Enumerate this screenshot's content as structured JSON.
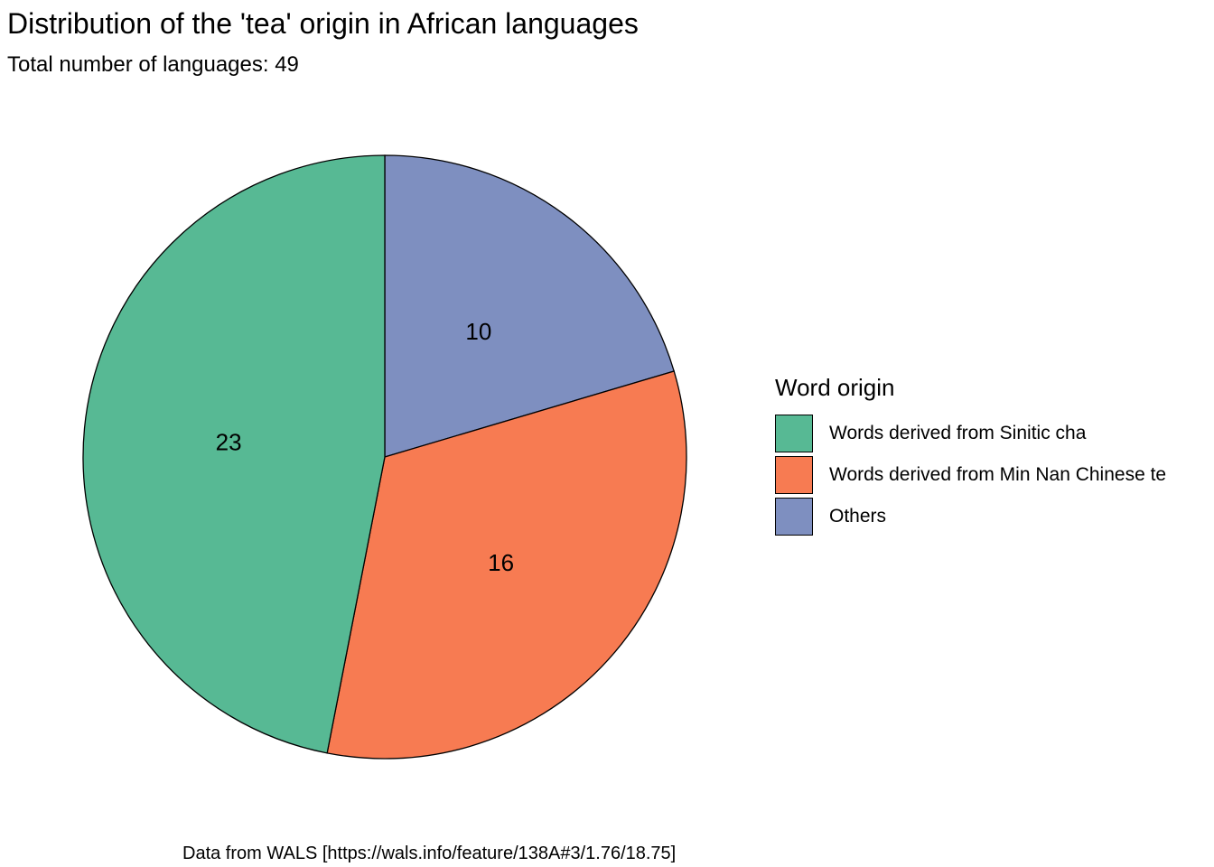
{
  "chart_data": {
    "type": "pie",
    "title": "Distribution of the 'tea' origin in African languages",
    "subtitle": "Total number of languages: 49",
    "caption": "Data from WALS [https://wals.info/feature/138A#3/1.76/18.75]",
    "legend_title": "Word origin",
    "legend_position": "right",
    "slices": [
      {
        "label": "Others",
        "value": 10,
        "color": "#7E8FC0"
      },
      {
        "label": "Words derived from Min Nan Chinese te",
        "value": 16,
        "color": "#F77B52"
      },
      {
        "label": "Words derived from Sinitic cha",
        "value": 23,
        "color": "#57B994"
      }
    ],
    "legend_order": [
      2,
      1,
      0
    ]
  }
}
